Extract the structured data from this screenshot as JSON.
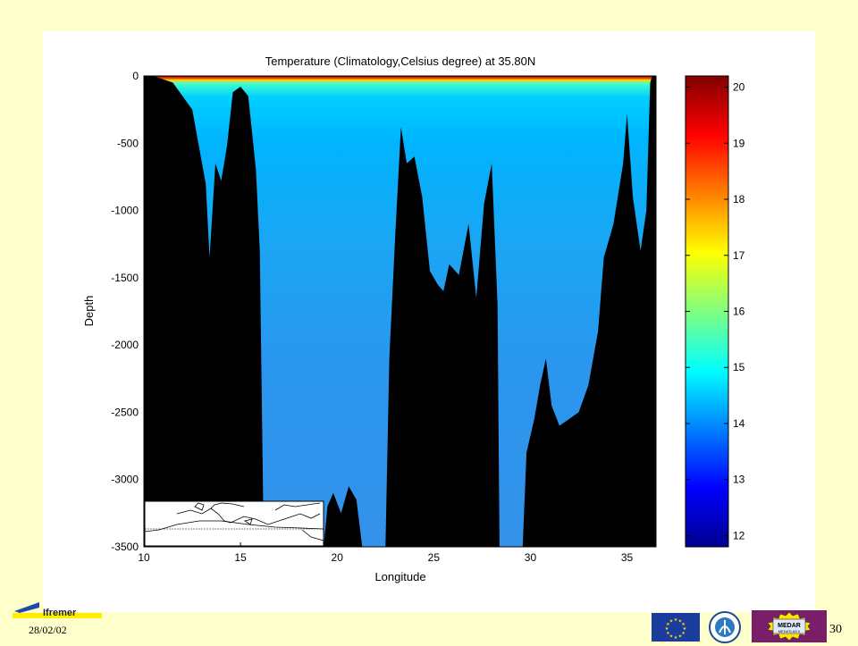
{
  "chart_data": {
    "type": "heatmap",
    "title": "Temperature (Climatology,Celsius degree) at 35.80N",
    "xlabel": "Longitude",
    "ylabel": "Depth",
    "xlim": [
      10,
      36.5
    ],
    "ylim": [
      -3500,
      0
    ],
    "x_ticks": [
      "10",
      "15",
      "20",
      "25",
      "30",
      "35"
    ],
    "y_ticks": [
      "0",
      "-500",
      "-1000",
      "-1500",
      "-2000",
      "-2500",
      "-3000",
      "-3500"
    ],
    "colorbar": {
      "range": [
        11.8,
        20.2
      ],
      "ticks": [
        "12",
        "13",
        "14",
        "15",
        "16",
        "17",
        "18",
        "19",
        "20"
      ]
    },
    "value_bands": [
      {
        "depth_from": 0,
        "depth_to": -20,
        "temp": 19.5
      },
      {
        "depth_from": -20,
        "depth_to": -60,
        "temp": 16.5
      },
      {
        "depth_from": -60,
        "depth_to": -150,
        "temp": 15.0
      },
      {
        "depth_from": -150,
        "depth_to": -500,
        "temp": 14.4
      },
      {
        "depth_from": -500,
        "depth_to": -1500,
        "temp": 14.0
      },
      {
        "depth_from": -1500,
        "depth_to": -3500,
        "temp": 13.8
      }
    ],
    "bathymetry": [
      [
        10.0,
        0
      ],
      [
        10.5,
        0
      ],
      [
        11.5,
        -50
      ],
      [
        12.5,
        -250
      ],
      [
        13.2,
        -800
      ],
      [
        13.4,
        -1350
      ],
      [
        13.7,
        -650
      ],
      [
        14.0,
        -780
      ],
      [
        14.3,
        -520
      ],
      [
        14.6,
        -120
      ],
      [
        15.0,
        -80
      ],
      [
        15.4,
        -150
      ],
      [
        15.8,
        -700
      ],
      [
        16.0,
        -1300
      ],
      [
        16.2,
        -3500
      ],
      [
        19.3,
        -3500
      ],
      [
        19.5,
        -3200
      ],
      [
        19.8,
        -3100
      ],
      [
        20.2,
        -3250
      ],
      [
        20.6,
        -3050
      ],
      [
        21.0,
        -3150
      ],
      [
        21.3,
        -3500
      ],
      [
        22.5,
        -3500
      ],
      [
        22.7,
        -2100
      ],
      [
        23.0,
        -1200
      ],
      [
        23.3,
        -380
      ],
      [
        23.6,
        -650
      ],
      [
        24.0,
        -600
      ],
      [
        24.4,
        -900
      ],
      [
        24.8,
        -1450
      ],
      [
        25.2,
        -1550
      ],
      [
        25.5,
        -1600
      ],
      [
        25.8,
        -1400
      ],
      [
        26.3,
        -1480
      ],
      [
        26.8,
        -1100
      ],
      [
        27.2,
        -1650
      ],
      [
        27.6,
        -950
      ],
      [
        28.0,
        -650
      ],
      [
        28.3,
        -1700
      ],
      [
        28.4,
        -3500
      ],
      [
        29.6,
        -3500
      ],
      [
        29.8,
        -2800
      ],
      [
        30.2,
        -2550
      ],
      [
        30.5,
        -2300
      ],
      [
        30.8,
        -2100
      ],
      [
        31.1,
        -2450
      ],
      [
        31.5,
        -2600
      ],
      [
        32.0,
        -2550
      ],
      [
        32.5,
        -2500
      ],
      [
        33.0,
        -2300
      ],
      [
        33.5,
        -1900
      ],
      [
        33.8,
        -1350
      ],
      [
        34.3,
        -1100
      ],
      [
        34.8,
        -650
      ],
      [
        35.0,
        -280
      ],
      [
        35.3,
        -900
      ],
      [
        35.7,
        -1300
      ],
      [
        36.0,
        -1000
      ],
      [
        36.2,
        -50
      ],
      [
        36.3,
        0
      ],
      [
        36.5,
        0
      ],
      [
        36.5,
        -1750
      ]
    ]
  },
  "footer": {
    "date": "28/02/02",
    "page_number": "30",
    "org_name": "Ifremer",
    "medar_line1": "MEDAR",
    "medar_line2": "MEDATLAS II"
  }
}
